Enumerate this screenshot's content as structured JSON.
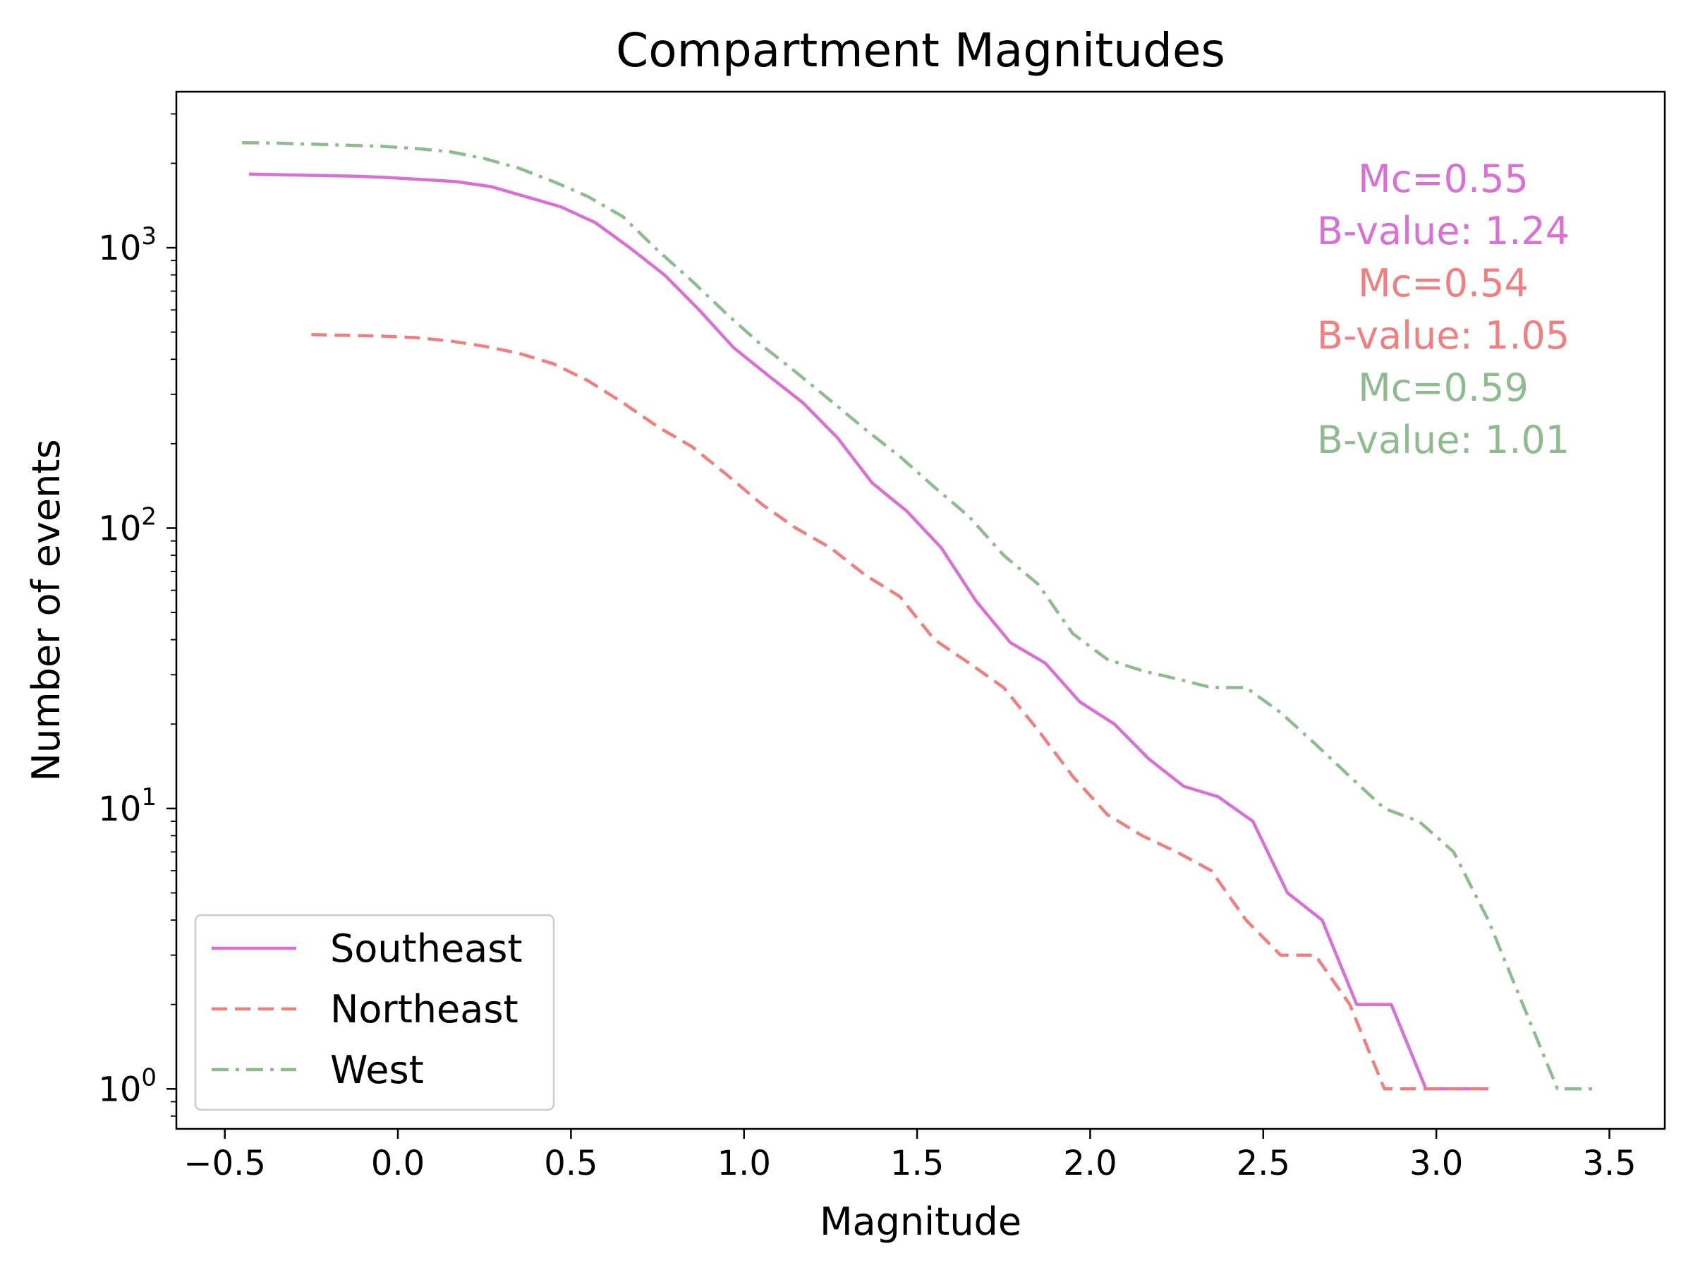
{
  "chart_data": {
    "type": "line",
    "title": "Compartment Magnitudes",
    "xlabel": "Magnitude",
    "ylabel": "Number of events",
    "xscale": "linear",
    "yscale": "log",
    "xlim": [
      -0.64,
      3.66
    ],
    "ylim": [
      0.72,
      3600
    ],
    "xticks": [
      -0.5,
      0.0,
      0.5,
      1.0,
      1.5,
      2.0,
      2.5,
      3.0,
      3.5
    ],
    "xtick_labels": [
      "−0.5",
      "0.0",
      "0.5",
      "1.0",
      "1.5",
      "2.0",
      "2.5",
      "3.0",
      "3.5"
    ],
    "yticks": [
      1,
      10,
      100,
      1000
    ],
    "ytick_labels": [
      {
        "base": "10",
        "exp": "0"
      },
      {
        "base": "10",
        "exp": "1"
      },
      {
        "base": "10",
        "exp": "2"
      },
      {
        "base": "10",
        "exp": "3"
      }
    ],
    "grid": false,
    "legend_position": "bottom-left",
    "series": [
      {
        "name": "Southeast",
        "color": "#da70d6",
        "dash": "solid",
        "x": [
          -0.43,
          -0.33,
          -0.23,
          -0.13,
          -0.03,
          0.07,
          0.17,
          0.27,
          0.37,
          0.47,
          0.57,
          0.67,
          0.77,
          0.87,
          0.97,
          1.07,
          1.17,
          1.27,
          1.37,
          1.47,
          1.57,
          1.67,
          1.77,
          1.87,
          1.97,
          2.07,
          2.17,
          2.27,
          2.37,
          2.47,
          2.57,
          2.67,
          2.77,
          2.87,
          2.97,
          3.07,
          3.15
        ],
        "y": [
          1830,
          1820,
          1810,
          1800,
          1780,
          1750,
          1720,
          1650,
          1520,
          1400,
          1230,
          1000,
          800,
          600,
          440,
          350,
          280,
          210,
          145,
          115,
          85,
          55,
          39,
          33,
          24,
          20,
          15,
          12,
          11,
          9,
          5,
          4,
          2,
          2,
          1,
          1,
          1
        ]
      },
      {
        "name": "Northeast",
        "color": "#f08080",
        "dash": "dashed",
        "x": [
          -0.25,
          -0.15,
          -0.05,
          0.05,
          0.15,
          0.25,
          0.35,
          0.45,
          0.55,
          0.65,
          0.75,
          0.85,
          0.95,
          1.05,
          1.15,
          1.25,
          1.35,
          1.45,
          1.55,
          1.65,
          1.75,
          1.85,
          1.95,
          2.05,
          2.15,
          2.25,
          2.35,
          2.45,
          2.55,
          2.65,
          2.75,
          2.85,
          2.95,
          3.05,
          3.15
        ],
        "y": [
          490,
          487,
          484,
          478,
          465,
          445,
          420,
          385,
          335,
          280,
          230,
          195,
          155,
          122,
          100,
          85,
          68,
          57,
          40,
          33,
          27,
          19,
          13,
          9.5,
          8,
          7,
          6,
          4,
          3,
          3,
          2,
          1,
          1,
          1,
          1
        ]
      },
      {
        "name": "West",
        "color": "#8fbc8f",
        "dash": "dashdot",
        "x": [
          -0.45,
          -0.35,
          -0.25,
          -0.15,
          -0.05,
          0.05,
          0.15,
          0.25,
          0.35,
          0.45,
          0.55,
          0.65,
          0.75,
          0.85,
          0.95,
          1.05,
          1.15,
          1.25,
          1.35,
          1.45,
          1.55,
          1.65,
          1.75,
          1.85,
          1.95,
          2.05,
          2.15,
          2.25,
          2.35,
          2.45,
          2.55,
          2.65,
          2.75,
          2.85,
          2.95,
          3.05,
          3.15,
          3.25,
          3.35,
          3.45
        ],
        "y": [
          2370,
          2360,
          2340,
          2320,
          2300,
          2260,
          2200,
          2080,
          1920,
          1720,
          1520,
          1290,
          980,
          760,
          580,
          450,
          360,
          285,
          225,
          180,
          140,
          110,
          80,
          63,
          42,
          34,
          31,
          29,
          27,
          27,
          22,
          17,
          13,
          10,
          9,
          7,
          4,
          2,
          1,
          1
        ]
      }
    ],
    "annotations": [
      {
        "text": "Mc=0.55",
        "color": "#da70d6"
      },
      {
        "text": "B-value: 1.24",
        "color": "#da70d6"
      },
      {
        "text": "Mc=0.54",
        "color": "#f08080"
      },
      {
        "text": "B-value: 1.05",
        "color": "#f08080"
      },
      {
        "text": "Mc=0.59",
        "color": "#8fbc8f"
      },
      {
        "text": "B-value: 1.01",
        "color": "#8fbc8f"
      }
    ]
  }
}
